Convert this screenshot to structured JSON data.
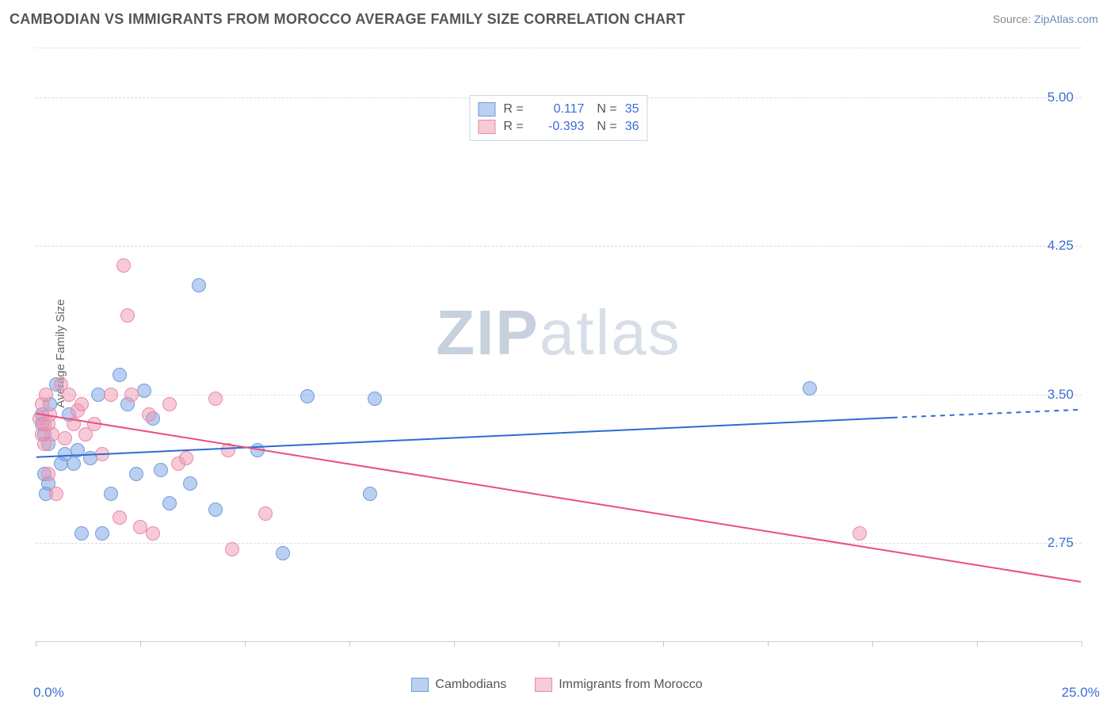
{
  "title": "CAMBODIAN VS IMMIGRANTS FROM MOROCCO AVERAGE FAMILY SIZE CORRELATION CHART",
  "source_prefix": "Source: ",
  "source_name": "ZipAtlas.com",
  "ylabel": "Average Family Size",
  "watermark_bold": "ZIP",
  "watermark_rest": "atlas",
  "chart": {
    "type": "scatter",
    "background_color": "#ffffff",
    "grid_color": "#dcdcdc",
    "border_color": "#d0d0d0",
    "label_color": "#666666",
    "tick_label_color": "#3b6fd6",
    "label_fontsize": 15,
    "tick_fontsize": 17,
    "xlim": [
      0,
      25
    ],
    "ylim": [
      2.25,
      5.25
    ],
    "x_tick_positions": [
      0,
      2.5,
      5,
      7.5,
      10,
      12.5,
      15,
      17.5,
      20,
      22.5,
      25
    ],
    "x_bound_labels": {
      "min": "0.0%",
      "max": "25.0%"
    },
    "y_ticks": [
      2.75,
      3.5,
      4.25,
      5.0
    ],
    "y_tick_labels": [
      "2.75",
      "3.50",
      "4.25",
      "5.00"
    ],
    "point_radius": 9,
    "point_opacity": 0.55,
    "trend_line_width": 2,
    "series": [
      {
        "key": "cambodians",
        "label": "Cambodians",
        "color_fill": "rgba(120,160,225,0.5)",
        "color_stroke": "#6f9de0",
        "trend_color": "#2e6bd1",
        "R": "0.117",
        "N": "35",
        "trend": {
          "x1": 0,
          "y1": 3.18,
          "x2": 20.5,
          "y2": 3.38,
          "dash_x2": 25,
          "dash_y2": 3.42
        },
        "points": [
          [
            0.15,
            3.35
          ],
          [
            0.15,
            3.4
          ],
          [
            0.2,
            3.1
          ],
          [
            0.2,
            3.3
          ],
          [
            0.25,
            3.0
          ],
          [
            0.3,
            3.05
          ],
          [
            0.3,
            3.25
          ],
          [
            0.35,
            3.45
          ],
          [
            0.5,
            3.55
          ],
          [
            0.6,
            3.15
          ],
          [
            0.7,
            3.2
          ],
          [
            0.8,
            3.4
          ],
          [
            0.9,
            3.15
          ],
          [
            1.0,
            3.22
          ],
          [
            1.1,
            2.8
          ],
          [
            1.3,
            3.18
          ],
          [
            1.5,
            3.5
          ],
          [
            1.6,
            2.8
          ],
          [
            1.8,
            3.0
          ],
          [
            2.0,
            3.6
          ],
          [
            2.2,
            3.45
          ],
          [
            2.4,
            3.1
          ],
          [
            2.6,
            3.52
          ],
          [
            2.8,
            3.38
          ],
          [
            3.0,
            3.12
          ],
          [
            3.2,
            2.95
          ],
          [
            3.7,
            3.05
          ],
          [
            3.9,
            4.05
          ],
          [
            4.3,
            2.92
          ],
          [
            5.3,
            3.22
          ],
          [
            5.9,
            2.7
          ],
          [
            6.5,
            3.49
          ],
          [
            8.0,
            3.0
          ],
          [
            8.1,
            3.48
          ],
          [
            18.5,
            3.53
          ]
        ]
      },
      {
        "key": "morocco",
        "label": "Immigrants from Morocco",
        "color_fill": "rgba(240,150,175,0.5)",
        "color_stroke": "#e98aa8",
        "trend_color": "#e94e7e",
        "R": "-0.393",
        "N": "36",
        "trend": {
          "x1": 0,
          "y1": 3.4,
          "x2": 25,
          "y2": 2.55
        },
        "points": [
          [
            0.1,
            3.38
          ],
          [
            0.15,
            3.3
          ],
          [
            0.15,
            3.45
          ],
          [
            0.2,
            3.35
          ],
          [
            0.2,
            3.25
          ],
          [
            0.25,
            3.5
          ],
          [
            0.3,
            3.35
          ],
          [
            0.3,
            3.1
          ],
          [
            0.35,
            3.4
          ],
          [
            0.4,
            3.3
          ],
          [
            0.5,
            3.0
          ],
          [
            0.6,
            3.55
          ],
          [
            0.7,
            3.28
          ],
          [
            0.8,
            3.5
          ],
          [
            0.9,
            3.35
          ],
          [
            1.0,
            3.42
          ],
          [
            1.1,
            3.45
          ],
          [
            1.2,
            3.3
          ],
          [
            1.4,
            3.35
          ],
          [
            1.6,
            3.2
          ],
          [
            1.8,
            3.5
          ],
          [
            2.0,
            2.88
          ],
          [
            2.1,
            4.15
          ],
          [
            2.2,
            3.9
          ],
          [
            2.3,
            3.5
          ],
          [
            2.5,
            2.83
          ],
          [
            2.7,
            3.4
          ],
          [
            2.8,
            2.8
          ],
          [
            3.2,
            3.45
          ],
          [
            3.4,
            3.15
          ],
          [
            3.6,
            3.18
          ],
          [
            4.3,
            3.48
          ],
          [
            4.6,
            3.22
          ],
          [
            4.7,
            2.72
          ],
          [
            5.5,
            2.9
          ],
          [
            19.7,
            2.8
          ]
        ]
      }
    ]
  }
}
